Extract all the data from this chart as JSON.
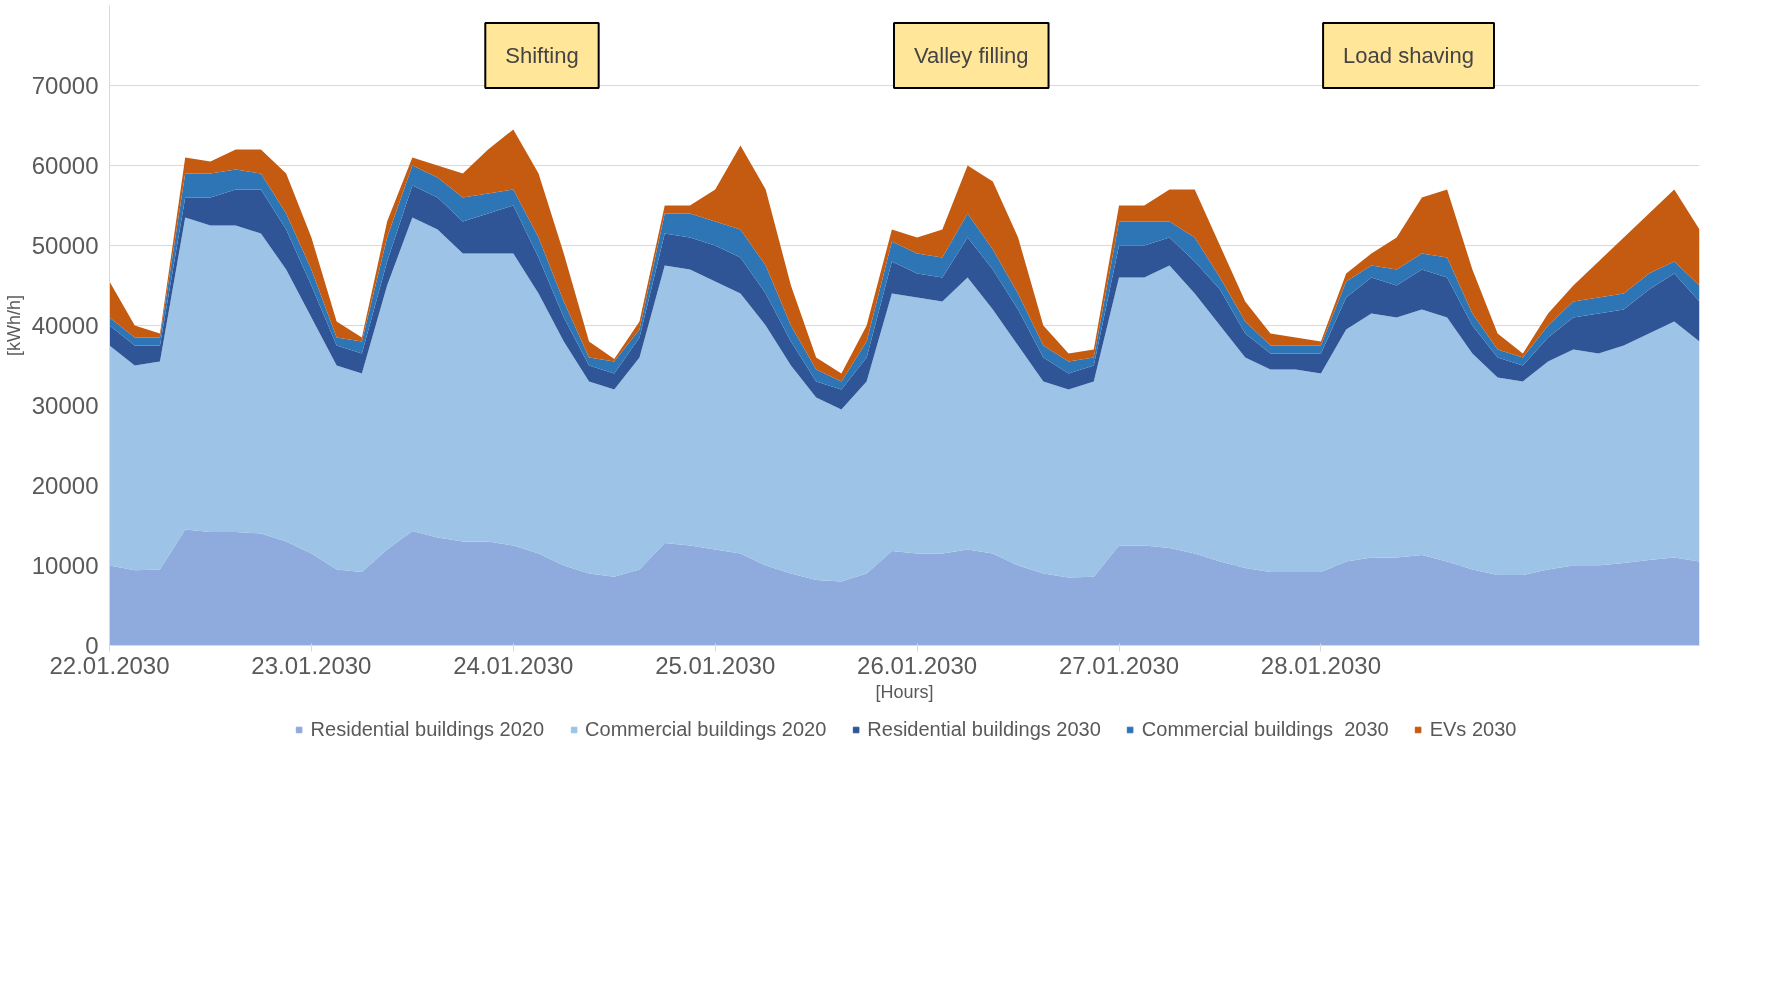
{
  "chart_data": {
    "type": "area",
    "stacked": true,
    "xlabel": "[Hours]",
    "ylabel": "[kWh/h]",
    "x": [
      "2030-01-22T00:00",
      "2030-01-22T03:00",
      "2030-01-22T06:00",
      "2030-01-22T09:00",
      "2030-01-22T12:00",
      "2030-01-22T15:00",
      "2030-01-22T18:00",
      "2030-01-22T21:00",
      "2030-01-23T00:00",
      "2030-01-23T03:00",
      "2030-01-23T06:00",
      "2030-01-23T09:00",
      "2030-01-23T12:00",
      "2030-01-23T15:00",
      "2030-01-23T18:00",
      "2030-01-23T21:00",
      "2030-01-24T00:00",
      "2030-01-24T03:00",
      "2030-01-24T06:00",
      "2030-01-24T09:00",
      "2030-01-24T12:00",
      "2030-01-24T15:00",
      "2030-01-24T18:00",
      "2030-01-24T21:00",
      "2030-01-25T00:00",
      "2030-01-25T03:00",
      "2030-01-25T06:00",
      "2030-01-25T09:00",
      "2030-01-25T12:00",
      "2030-01-25T15:00",
      "2030-01-25T18:00",
      "2030-01-25T21:00",
      "2030-01-26T00:00",
      "2030-01-26T03:00",
      "2030-01-26T06:00",
      "2030-01-26T09:00",
      "2030-01-26T12:00",
      "2030-01-26T15:00",
      "2030-01-26T18:00",
      "2030-01-26T21:00",
      "2030-01-27T00:00",
      "2030-01-27T03:00",
      "2030-01-27T06:00",
      "2030-01-27T09:00",
      "2030-01-27T12:00",
      "2030-01-27T15:00",
      "2030-01-27T18:00",
      "2030-01-27T21:00",
      "2030-01-28T00:00",
      "2030-01-28T03:00",
      "2030-01-28T06:00",
      "2030-01-28T09:00",
      "2030-01-28T12:00",
      "2030-01-28T15:00",
      "2030-01-28T18:00",
      "2030-01-28T21:00",
      "2030-01-29T00:00",
      "2030-01-29T03:00",
      "2030-01-29T06:00",
      "2030-01-29T09:00",
      "2030-01-29T12:00",
      "2030-01-29T15:00",
      "2030-01-29T18:00",
      "2030-01-29T21:00"
    ],
    "series": [
      {
        "name": "Residential buildings 2020",
        "color": "#8faadc",
        "values": [
          10000,
          9400,
          9500,
          14500,
          14200,
          14200,
          14000,
          13000,
          11500,
          9500,
          9200,
          12000,
          14300,
          13500,
          13000,
          13000,
          12500,
          11500,
          10000,
          9000,
          8600,
          9500,
          12800,
          12500,
          12000,
          11500,
          10000,
          9000,
          8200,
          8000,
          9000,
          11800,
          11500,
          11500,
          12000,
          11500,
          10000,
          9000,
          8500,
          8600,
          12500,
          12500,
          12200,
          11500,
          10500,
          9700,
          9200,
          9200,
          9200,
          10500,
          11000,
          11000,
          11300,
          10500,
          9500,
          8800,
          8800,
          9500,
          10000,
          10000,
          10300,
          10700,
          11000,
          10500
        ]
      },
      {
        "name": "Commercial buildings 2020",
        "color": "#9dc3e6",
        "values": [
          27500,
          25600,
          26000,
          39000,
          38300,
          38300,
          37500,
          34000,
          29500,
          25500,
          24800,
          33000,
          39200,
          38500,
          36000,
          36000,
          36500,
          32500,
          28000,
          24000,
          23400,
          26500,
          34700,
          34500,
          33500,
          32500,
          30000,
          26000,
          22800,
          21500,
          24000,
          32200,
          32000,
          31500,
          34000,
          30500,
          27500,
          24000,
          23500,
          24400,
          33500,
          33500,
          35300,
          32500,
          29500,
          26300,
          25300,
          25300,
          24800,
          29000,
          30500,
          30000,
          30700,
          30500,
          27000,
          24700,
          24200,
          26000,
          27000,
          26500,
          27200,
          28300,
          29500,
          27500
        ]
      },
      {
        "name": "Residential buildings 2030",
        "color": "#2f5597",
        "values": [
          2500,
          2500,
          2000,
          2500,
          3500,
          4500,
          5500,
          5000,
          4000,
          2500,
          2500,
          3000,
          4000,
          4000,
          4000,
          5000,
          6000,
          4500,
          3000,
          2000,
          2000,
          2500,
          4000,
          4000,
          4500,
          4500,
          4000,
          3000,
          2000,
          2500,
          3000,
          4000,
          3000,
          3000,
          5000,
          5000,
          4500,
          3000,
          2000,
          2000,
          4000,
          4000,
          3500,
          4000,
          4500,
          3000,
          2000,
          2000,
          2500,
          4000,
          4500,
          4000,
          5000,
          5000,
          3500,
          2500,
          2000,
          3000,
          4000,
          5000,
          4500,
          5500,
          6000,
          5000
        ]
      },
      {
        "name": "Commercial buildings  2030",
        "color": "#2e75b6",
        "values": [
          1000,
          1000,
          1000,
          3000,
          3000,
          2500,
          2000,
          2000,
          2000,
          1000,
          1500,
          3000,
          2500,
          2500,
          3000,
          2500,
          2000,
          2500,
          2000,
          1000,
          1500,
          1000,
          2500,
          3000,
          3000,
          3500,
          3500,
          2000,
          1500,
          1000,
          2000,
          2500,
          2500,
          2500,
          3000,
          2500,
          2000,
          1500,
          1500,
          1000,
          3000,
          3000,
          2000,
          3000,
          1500,
          1500,
          1000,
          1000,
          1000,
          2000,
          1500,
          2000,
          2000,
          2500,
          1500,
          1000,
          1000,
          1500,
          2000,
          2000,
          2000,
          2000,
          1500,
          2000
        ]
      },
      {
        "name": "EVs 2030",
        "color": "#c55a11",
        "values": [
          4500,
          1500,
          500,
          2000,
          1500,
          2500,
          3000,
          5000,
          4000,
          2000,
          500,
          2000,
          1000,
          1500,
          3000,
          5500,
          7500,
          8000,
          6000,
          2000,
          300,
          1000,
          1000,
          1000,
          4000,
          10500,
          9500,
          5000,
          1500,
          1000,
          2000,
          1500,
          2000,
          3500,
          6000,
          8500,
          7000,
          2500,
          1000,
          1000,
          2000,
          2000,
          4000,
          6000,
          4000,
          2500,
          1500,
          1000,
          500,
          1000,
          1500,
          4000,
          7000,
          8500,
          5500,
          2000,
          500,
          1500,
          2000,
          4500,
          7000,
          7500,
          9000,
          7000
        ]
      }
    ],
    "xlim": [
      "2030-01-22T00:00",
      "2030-01-29T21:00"
    ],
    "xticks": [
      {
        "value": "2030-01-22",
        "label": "22.01.2030"
      },
      {
        "value": "2030-01-23",
        "label": "23.01.2030"
      },
      {
        "value": "2030-01-24",
        "label": "24.01.2030"
      },
      {
        "value": "2030-01-25",
        "label": "25.01.2030"
      },
      {
        "value": "2030-01-26",
        "label": "26.01.2030"
      },
      {
        "value": "2030-01-27",
        "label": "27.01.2030"
      },
      {
        "value": "2030-01-28",
        "label": "28.01.2030"
      }
    ],
    "ylim": [
      0,
      80000
    ],
    "yticks": [
      0,
      10000,
      20000,
      30000,
      40000,
      50000,
      60000,
      70000
    ],
    "grid": "y",
    "legend": "bottom",
    "annotations": [
      "Shifting",
      "Valley filling",
      "Load shaving"
    ]
  }
}
